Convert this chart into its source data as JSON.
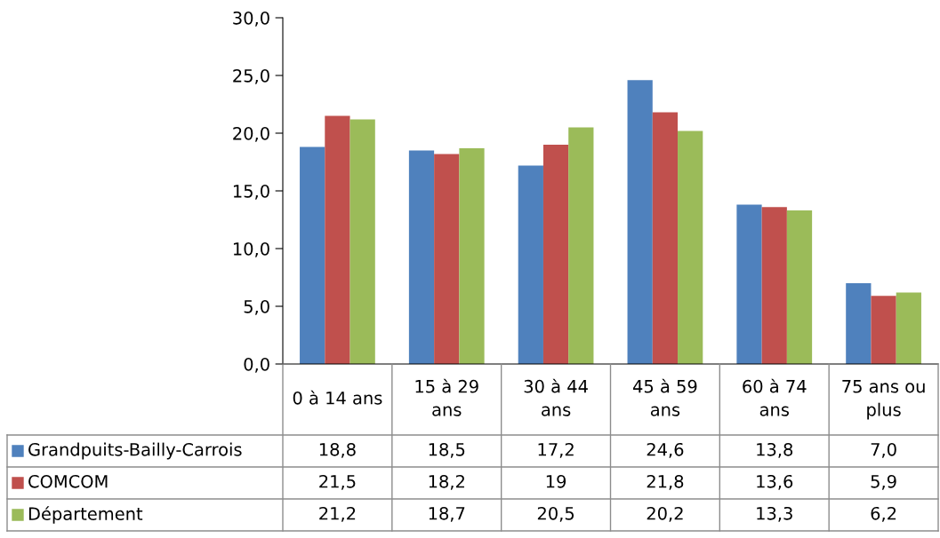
{
  "chart_data": {
    "type": "bar",
    "categories": [
      "0 à 14 ans",
      "15 à 29 ans",
      "30 à 44 ans",
      "45 à 59 ans",
      "60 à 74 ans",
      "75 ans ou plus"
    ],
    "series": [
      {
        "name": "Grandpuits-Bailly-Carrois",
        "color": "#4f81bd",
        "values": [
          18.8,
          18.5,
          17.2,
          24.6,
          13.8,
          7.0
        ],
        "value_labels": [
          "18,8",
          "18,5",
          "17,2",
          "24,6",
          "13,8",
          "7,0"
        ]
      },
      {
        "name": "COMCOM",
        "color": "#c0504d",
        "values": [
          21.5,
          18.2,
          19,
          21.8,
          13.6,
          5.9
        ],
        "value_labels": [
          "21,5",
          "18,2",
          "19",
          "21,8",
          "13,6",
          "5,9"
        ]
      },
      {
        "name": "Département",
        "color": "#9bbb59",
        "values": [
          21.2,
          18.7,
          20.5,
          20.2,
          13.3,
          6.2
        ],
        "value_labels": [
          "21,2",
          "18,7",
          "20,5",
          "20,2",
          "13,3",
          "6,2"
        ]
      }
    ],
    "ylim": [
      0,
      30
    ],
    "yticks": [
      {
        "value": 0,
        "label": "0,0"
      },
      {
        "value": 5,
        "label": "5,0"
      },
      {
        "value": 10,
        "label": "10,0"
      },
      {
        "value": 15,
        "label": "15,0"
      },
      {
        "value": 20,
        "label": "20,0"
      },
      {
        "value": 25,
        "label": "25,0"
      },
      {
        "value": 30,
        "label": "30,0"
      }
    ],
    "grid": false,
    "legend": "bottom left"
  }
}
